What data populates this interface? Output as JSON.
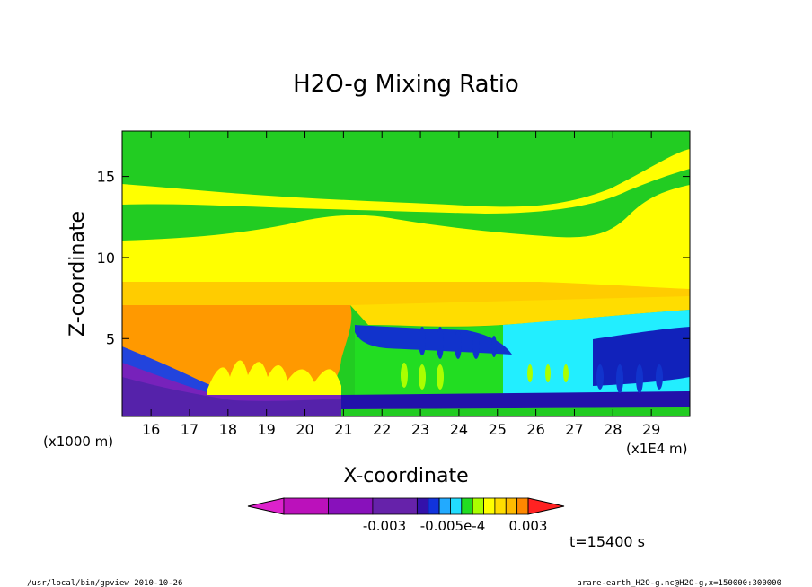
{
  "chart_data": {
    "type": "heatmap",
    "title": "H2O-g Mixing Ratio",
    "xlabel": "X-coordinate",
    "ylabel": "Z-coordinate",
    "x_unit_note": "(x1E4 m)",
    "y_unit_note": "(x1000 m)",
    "xlim": [
      15.25,
      30.0
    ],
    "ylim": [
      0.2,
      17.8
    ],
    "x_ticks": [
      "16",
      "17",
      "18",
      "19",
      "20",
      "21",
      "22",
      "23",
      "24",
      "25",
      "26",
      "27",
      "28",
      "29"
    ],
    "y_ticks": [
      "5",
      "10",
      "15"
    ],
    "colorbar": {
      "labels": [
        "-0.003",
        "-0.005e-4",
        "0.003"
      ],
      "colors": [
        "#dd22cc",
        "#bb11bb",
        "#8811bb",
        "#6622aa",
        "#3311aa",
        "#1133dd",
        "#22aaff",
        "#22ddff",
        "#22dd22",
        "#aaff00",
        "#ffff00",
        "#ffdd00",
        "#ffbb00",
        "#ff8800",
        "#ff2222"
      ]
    },
    "time_label": "t=15400 s"
  },
  "footer": {
    "left": "/usr/local/bin/gpview   2010-10-26",
    "right": "arare-earth_H2O-g.nc@H2O-g,x=150000:300000"
  }
}
